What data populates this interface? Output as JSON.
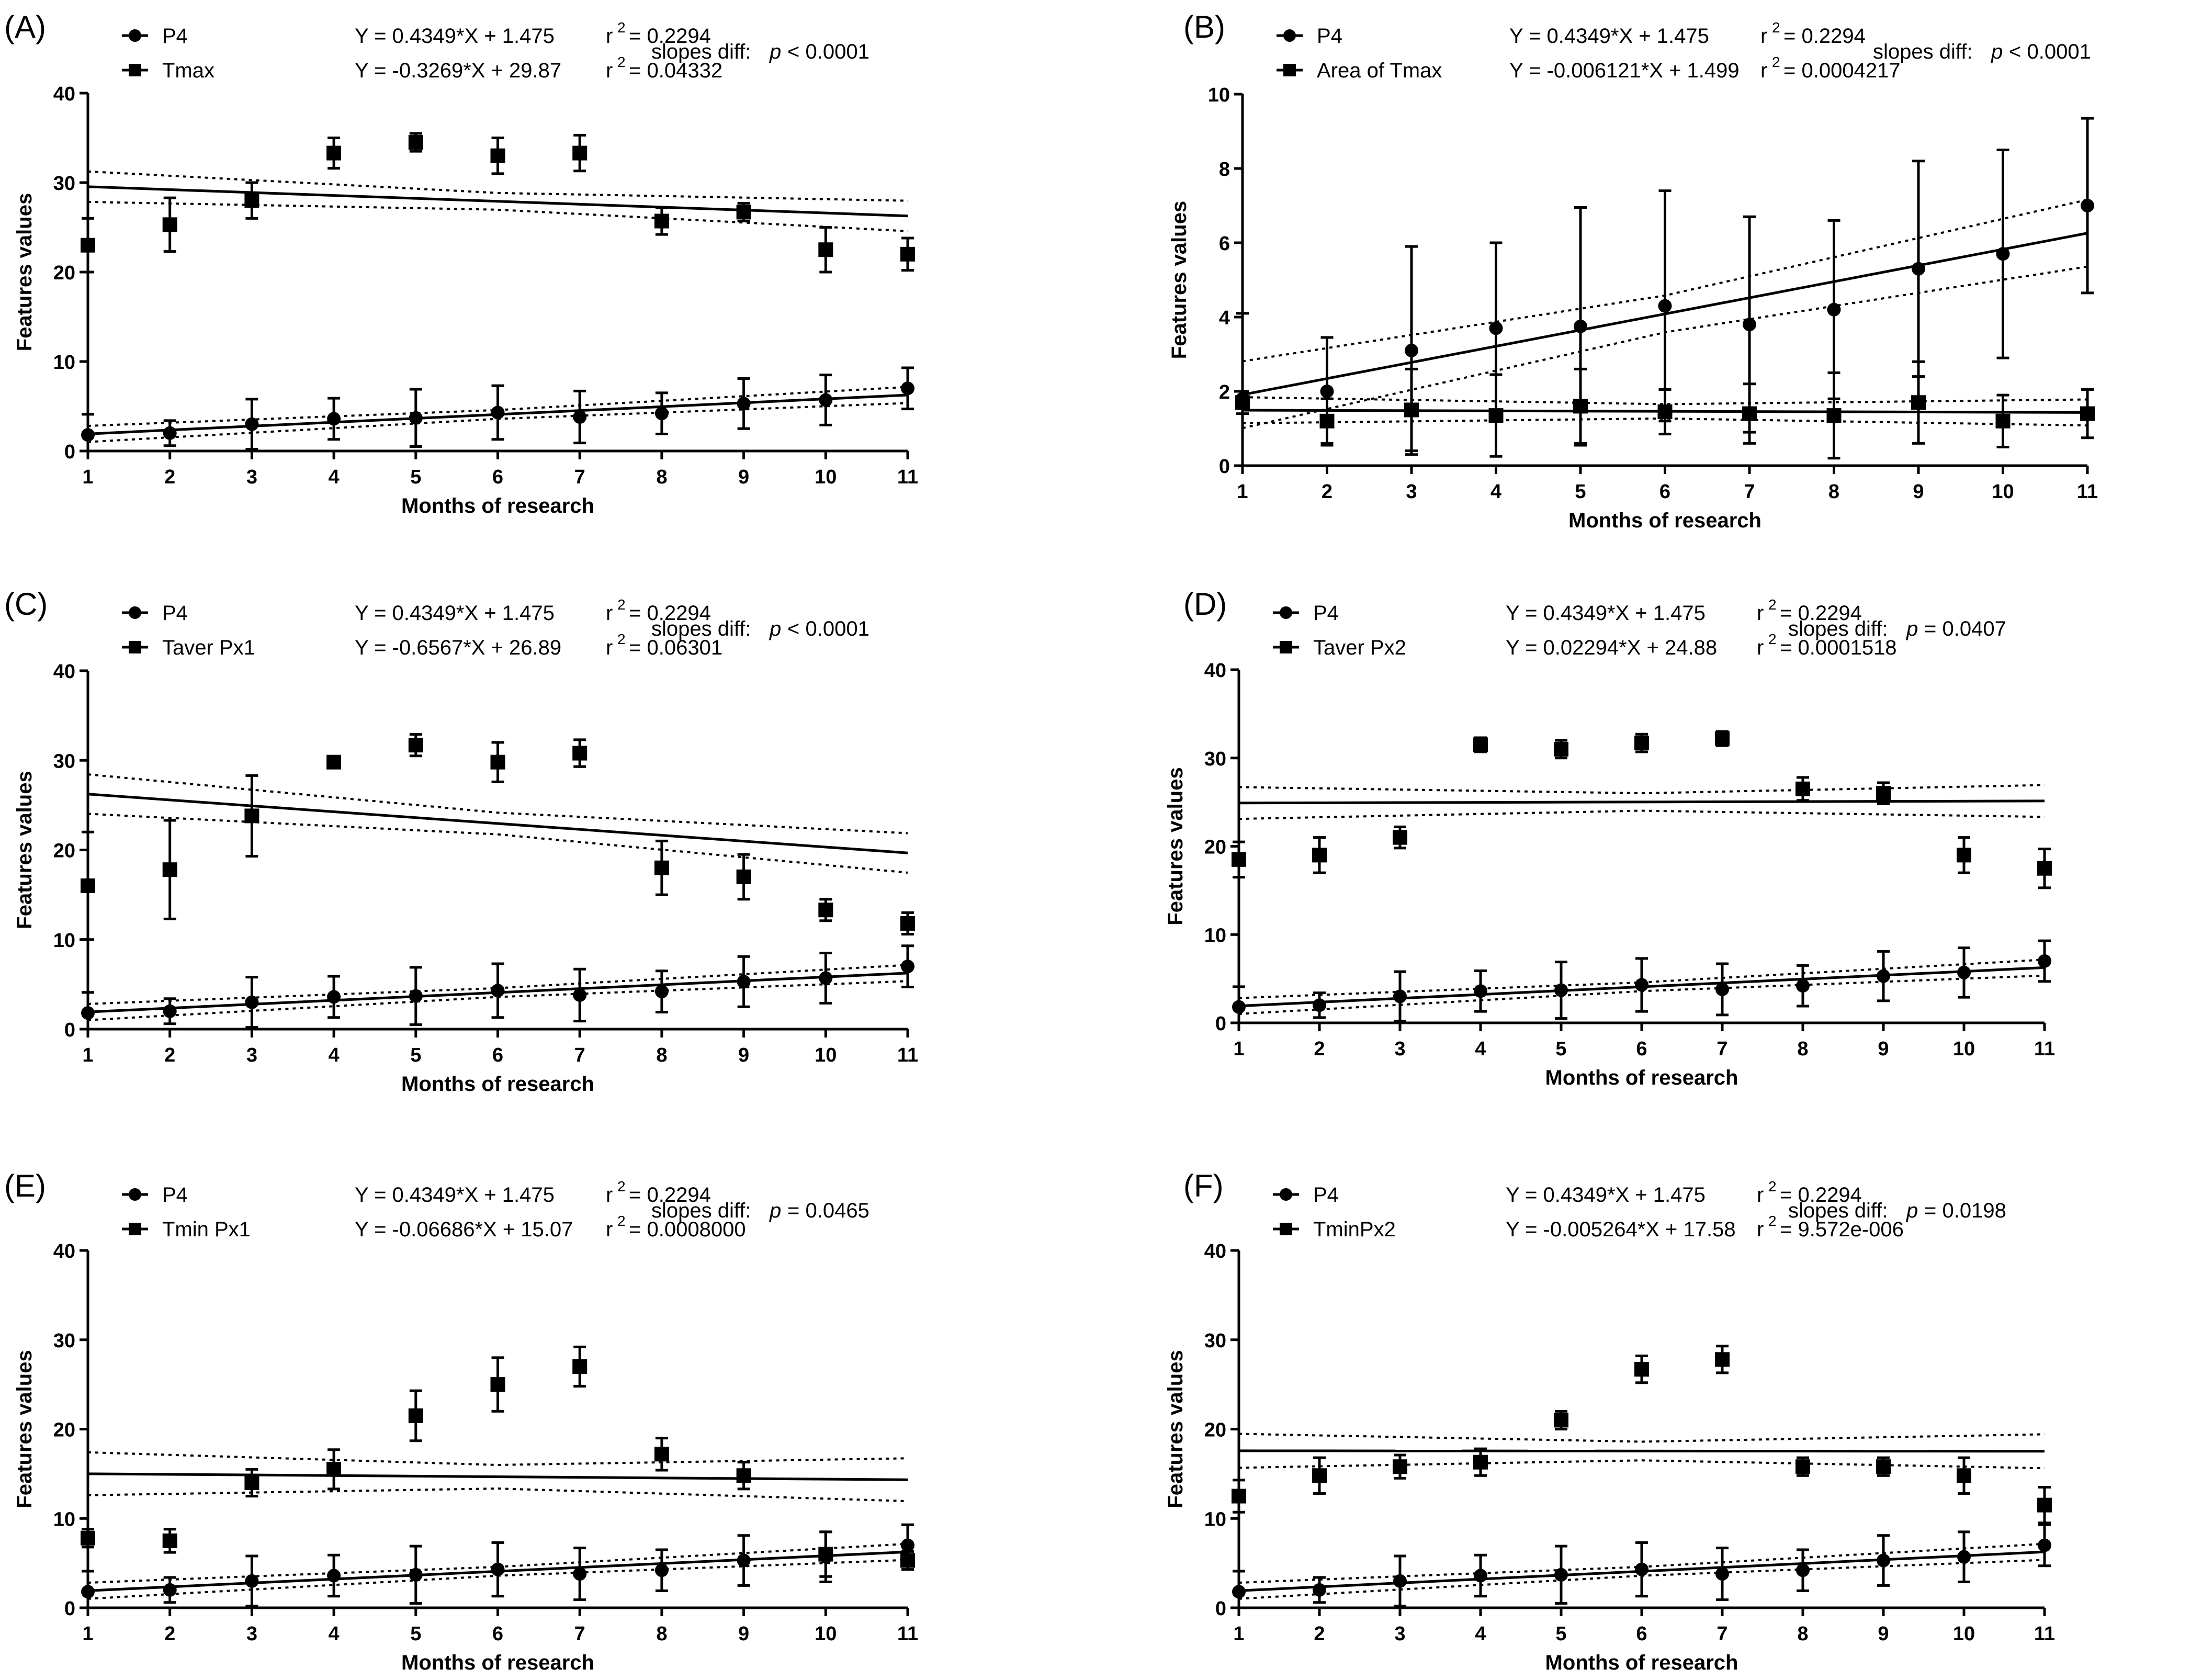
{
  "chart_data": [
    {
      "type": "scatter",
      "panel_label": "(A)",
      "xlabel": "Months of research",
      "ylabel": "Features values",
      "xlim": [
        1,
        11
      ],
      "ylim": [
        0,
        40
      ],
      "yticks": [
        "0",
        "10",
        "20",
        "30",
        "40"
      ],
      "xticks": [
        "1",
        "2",
        "3",
        "4",
        "5",
        "6",
        "7",
        "8",
        "9",
        "10",
        "11"
      ],
      "slopes_diff": {
        "prefix": "slopes diff:",
        "p": "p",
        "rest": "< 0.0001"
      },
      "series": [
        {
          "name": "P4",
          "marker": "circle",
          "equation": "Y = 0.4349*X + 1.475",
          "r2_label": "r",
          "r2_sup": "2",
          "r2_value": "= 0.2294",
          "fit": {
            "slope": 0.4349,
            "intercept": 1.475,
            "band": 0.9
          },
          "x": [
            1,
            2,
            3,
            4,
            5,
            6,
            7,
            8,
            9,
            10,
            11
          ],
          "y": [
            1.8,
            2.0,
            3.0,
            3.6,
            3.7,
            4.3,
            3.8,
            4.2,
            5.3,
            5.7,
            7.0
          ],
          "err": [
            2.3,
            1.4,
            2.8,
            2.3,
            3.2,
            3.0,
            2.9,
            2.3,
            2.8,
            2.8,
            2.3
          ]
        },
        {
          "name": "Tmax",
          "marker": "square",
          "equation": "Y = -0.3269*X + 29.87",
          "r2_label": "r",
          "r2_sup": "2",
          "r2_value": "= 0.04332",
          "fit": {
            "slope": -0.3269,
            "intercept": 29.87,
            "band": 1.7
          },
          "x": [
            1,
            2,
            3,
            4,
            5,
            6,
            7,
            8,
            9,
            10,
            11
          ],
          "y": [
            23.0,
            25.3,
            28.0,
            33.3,
            34.5,
            33.0,
            33.3,
            25.7,
            26.7,
            22.5,
            22.0
          ],
          "err": [
            3.0,
            3.0,
            2.0,
            1.7,
            1.0,
            2.0,
            2.0,
            1.5,
            1.0,
            2.5,
            1.8
          ]
        }
      ]
    },
    {
      "type": "scatter",
      "panel_label": "(B)",
      "xlabel": "Months of research",
      "ylabel": "Features values",
      "xlim": [
        1,
        11
      ],
      "ylim": [
        0,
        10
      ],
      "yticks": [
        "0",
        "2",
        "4",
        "6",
        "8",
        "10"
      ],
      "xticks": [
        "1",
        "2",
        "3",
        "4",
        "5",
        "6",
        "7",
        "8",
        "9",
        "10",
        "11"
      ],
      "slopes_diff": {
        "prefix": "slopes diff:",
        "p": "p",
        "rest": "< 0.0001"
      },
      "series": [
        {
          "name": "P4",
          "marker": "circle",
          "equation": "Y = 0.4349*X + 1.475",
          "r2_label": "r",
          "r2_sup": "2",
          "r2_value": "= 0.2294",
          "fit": {
            "slope": 0.4349,
            "intercept": 1.475,
            "band": 0.9
          },
          "x": [
            1,
            2,
            3,
            4,
            5,
            6,
            7,
            8,
            9,
            10,
            11
          ],
          "y": [
            1.8,
            2.0,
            3.1,
            3.7,
            3.75,
            4.3,
            3.8,
            4.2,
            5.3,
            5.7,
            7.0
          ],
          "err": [
            2.3,
            1.45,
            2.8,
            2.3,
            3.2,
            3.1,
            2.9,
            2.4,
            2.9,
            2.8,
            2.35
          ]
        },
        {
          "name": "Area of Tmax",
          "marker": "square",
          "equation": "Y = -0.006121*X + 1.499",
          "r2_label": "r",
          "r2_sup": "2",
          "r2_value": "= 0.0004217",
          "fit": {
            "slope": -0.006121,
            "intercept": 1.499,
            "band": 0.35
          },
          "x": [
            1,
            2,
            3,
            4,
            5,
            6,
            7,
            8,
            9,
            10,
            11
          ],
          "y": [
            1.7,
            1.2,
            1.5,
            1.35,
            1.6,
            1.45,
            1.4,
            1.35,
            1.7,
            1.2,
            1.4
          ],
          "err": [
            0.3,
            0.6,
            1.1,
            1.1,
            1.0,
            0.6,
            0.8,
            1.15,
            1.1,
            0.7,
            0.65
          ]
        }
      ]
    },
    {
      "type": "scatter",
      "panel_label": "(C)",
      "xlabel": "Months of research",
      "ylabel": "Features values",
      "xlim": [
        1,
        11
      ],
      "ylim": [
        0,
        40
      ],
      "yticks": [
        "0",
        "10",
        "20",
        "30",
        "40"
      ],
      "xticks": [
        "1",
        "2",
        "3",
        "4",
        "5",
        "6",
        "7",
        "8",
        "9",
        "10",
        "11"
      ],
      "slopes_diff": {
        "prefix": "slopes diff:",
        "p": "p",
        "rest": "< 0.0001"
      },
      "series": [
        {
          "name": "P4",
          "marker": "circle",
          "equation": "Y = 0.4349*X + 1.475",
          "r2_label": "r",
          "r2_sup": "2",
          "r2_value": "= 0.2294",
          "fit": {
            "slope": 0.4349,
            "intercept": 1.475,
            "band": 0.9
          },
          "x": [
            1,
            2,
            3,
            4,
            5,
            6,
            7,
            8,
            9,
            10,
            11
          ],
          "y": [
            1.8,
            2.0,
            3.0,
            3.6,
            3.7,
            4.3,
            3.8,
            4.2,
            5.3,
            5.7,
            7.0
          ],
          "err": [
            2.3,
            1.4,
            2.8,
            2.3,
            3.2,
            3.0,
            2.9,
            2.3,
            2.8,
            2.8,
            2.3
          ]
        },
        {
          "name": "Taver Px1",
          "marker": "square",
          "equation": "Y = -0.6567*X + 26.89",
          "r2_label": "r",
          "r2_sup": "2",
          "r2_value": "= 0.06301",
          "fit": {
            "slope": -0.6567,
            "intercept": 26.89,
            "band": 2.2
          },
          "x": [
            1,
            2,
            3,
            4,
            5,
            6,
            7,
            8,
            9,
            10,
            11
          ],
          "y": [
            16.0,
            17.8,
            23.8,
            29.8,
            31.7,
            29.8,
            30.8,
            18.0,
            17.0,
            13.3,
            11.8
          ],
          "err": [
            6.0,
            5.5,
            4.5,
            0.6,
            1.2,
            2.2,
            1.5,
            3.0,
            2.5,
            1.2,
            1.2
          ]
        }
      ]
    },
    {
      "type": "scatter",
      "panel_label": "(D)",
      "xlabel": "Months of research",
      "ylabel": "Features values",
      "xlim": [
        1,
        11
      ],
      "ylim": [
        0,
        40
      ],
      "yticks": [
        "0",
        "10",
        "20",
        "30",
        "40"
      ],
      "xticks": [
        "1",
        "2",
        "3",
        "4",
        "5",
        "6",
        "7",
        "8",
        "9",
        "10",
        "11"
      ],
      "slopes_diff": {
        "prefix": "slopes diff:",
        "p": "p",
        "rest": "= 0.0407"
      },
      "series": [
        {
          "name": "P4",
          "marker": "circle",
          "equation": "Y = 0.4349*X + 1.475",
          "r2_label": "r",
          "r2_sup": "2",
          "r2_value": "= 0.2294",
          "fit": {
            "slope": 0.4349,
            "intercept": 1.475,
            "band": 0.9
          },
          "x": [
            1,
            2,
            3,
            4,
            5,
            6,
            7,
            8,
            9,
            10,
            11
          ],
          "y": [
            1.8,
            2.0,
            3.0,
            3.6,
            3.7,
            4.3,
            3.8,
            4.2,
            5.3,
            5.7,
            7.0
          ],
          "err": [
            2.3,
            1.4,
            2.8,
            2.3,
            3.2,
            3.0,
            2.9,
            2.3,
            2.8,
            2.8,
            2.3
          ]
        },
        {
          "name": "Taver Px2",
          "marker": "square",
          "equation": "Y = 0.02294*X + 24.88",
          "r2_label": "r",
          "r2_sup": "2",
          "r2_value": "= 0.0001518",
          "fit": {
            "slope": 0.02294,
            "intercept": 24.88,
            "band": 1.8
          },
          "x": [
            1,
            2,
            3,
            4,
            5,
            6,
            7,
            8,
            9,
            10,
            11
          ],
          "y": [
            18.5,
            19.0,
            21.0,
            31.5,
            31.0,
            31.7,
            32.2,
            26.5,
            26.0,
            19.0,
            17.5
          ],
          "err": [
            2.0,
            2.0,
            1.2,
            0.8,
            1.0,
            1.0,
            0.8,
            1.3,
            1.2,
            2.0,
            2.2
          ]
        }
      ]
    },
    {
      "type": "scatter",
      "panel_label": "(E)",
      "xlabel": "Months of research",
      "ylabel": "Features values",
      "xlim": [
        1,
        11
      ],
      "ylim": [
        0,
        40
      ],
      "yticks": [
        "0",
        "10",
        "20",
        "30",
        "40"
      ],
      "xticks": [
        "1",
        "2",
        "3",
        "4",
        "5",
        "6",
        "7",
        "8",
        "9",
        "10",
        "11"
      ],
      "slopes_diff": {
        "prefix": "slopes diff:",
        "p": "p",
        "rest": "= 0.0465"
      },
      "series": [
        {
          "name": "P4",
          "marker": "circle",
          "equation": "Y = 0.4349*X + 1.475",
          "r2_label": "r",
          "r2_sup": "2",
          "r2_value": "= 0.2294",
          "fit": {
            "slope": 0.4349,
            "intercept": 1.475,
            "band": 0.9
          },
          "x": [
            1,
            2,
            3,
            4,
            5,
            6,
            7,
            8,
            9,
            10,
            11
          ],
          "y": [
            1.8,
            2.0,
            3.0,
            3.6,
            3.7,
            4.3,
            3.8,
            4.2,
            5.3,
            5.7,
            7.0
          ],
          "err": [
            2.3,
            1.4,
            2.8,
            2.3,
            3.2,
            3.0,
            2.9,
            2.3,
            2.8,
            2.8,
            2.3
          ]
        },
        {
          "name": "Tmin Px1",
          "marker": "square",
          "equation": "Y = -0.06686*X + 15.07",
          "r2_label": "r",
          "r2_sup": "2",
          "r2_value": "= 0.0008000",
          "fit": {
            "slope": -0.06686,
            "intercept": 15.07,
            "band": 2.4
          },
          "x": [
            1,
            2,
            3,
            4,
            5,
            6,
            7,
            8,
            9,
            10,
            11
          ],
          "y": [
            7.8,
            7.5,
            14.0,
            15.5,
            21.5,
            25.0,
            27.0,
            17.2,
            14.8,
            6.0,
            5.3
          ],
          "err": [
            1.0,
            1.3,
            1.5,
            2.2,
            2.8,
            3.0,
            2.2,
            1.8,
            1.5,
            2.5,
            1.0
          ]
        }
      ]
    },
    {
      "type": "scatter",
      "panel_label": "(F)",
      "xlabel": "Months of research",
      "ylabel": "Features values",
      "xlim": [
        1,
        11
      ],
      "ylim": [
        0,
        40
      ],
      "yticks": [
        "0",
        "10",
        "20",
        "30",
        "40"
      ],
      "xticks": [
        "1",
        "2",
        "3",
        "4",
        "5",
        "6",
        "7",
        "8",
        "9",
        "10",
        "11"
      ],
      "slopes_diff": {
        "prefix": "slopes diff:",
        "p": "p",
        "rest": "= 0.0198"
      },
      "series": [
        {
          "name": "P4",
          "marker": "circle",
          "equation": "Y = 0.4349*X + 1.475",
          "r2_label": "r",
          "r2_sup": "2",
          "r2_value": "= 0.2294",
          "fit": {
            "slope": 0.4349,
            "intercept": 1.475,
            "band": 0.9
          },
          "x": [
            1,
            2,
            3,
            4,
            5,
            6,
            7,
            8,
            9,
            10,
            11
          ],
          "y": [
            1.8,
            2.0,
            3.0,
            3.6,
            3.7,
            4.3,
            3.8,
            4.2,
            5.3,
            5.7,
            7.0
          ],
          "err": [
            2.3,
            1.4,
            2.8,
            2.3,
            3.2,
            3.0,
            2.9,
            2.3,
            2.8,
            2.8,
            2.3
          ]
        },
        {
          "name": "TminPx2",
          "marker": "square",
          "equation": "Y = -0.005264*X + 17.58",
          "r2_label": "r",
          "r2_sup": "2",
          "r2_value": "= 9.572e-006",
          "fit": {
            "slope": -0.005264,
            "intercept": 17.58,
            "band": 1.9
          },
          "x": [
            1,
            2,
            3,
            4,
            5,
            6,
            7,
            8,
            9,
            10,
            11
          ],
          "y": [
            12.5,
            14.8,
            15.8,
            16.3,
            21.0,
            26.7,
            27.8,
            15.8,
            15.8,
            14.8,
            11.5
          ],
          "err": [
            1.8,
            2.0,
            1.3,
            1.5,
            1.0,
            1.5,
            1.5,
            1.0,
            1.0,
            2.0,
            2.0
          ]
        }
      ]
    }
  ]
}
